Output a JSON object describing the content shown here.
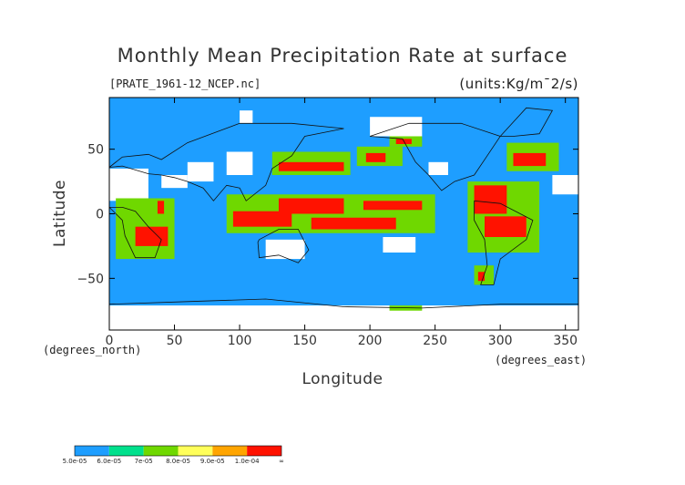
{
  "chart_data": {
    "type": "heatmap",
    "title": "Monthly Mean Precipitation Rate at surface",
    "source_label": "[PRATE_1961-12_NCEP.nc]",
    "units_label": "(units:Kg/m¯2/s)",
    "xlabel": "Longitude",
    "ylabel": "Latitude",
    "x_units_note": "(degrees_east)",
    "y_units_note": "(degrees_north)",
    "xlim": [
      0,
      360
    ],
    "ylim": [
      -90,
      90
    ],
    "x_ticks": [
      {
        "value": 0,
        "label": "0"
      },
      {
        "value": 50,
        "label": "50"
      },
      {
        "value": 100,
        "label": "100"
      },
      {
        "value": 150,
        "label": "150"
      },
      {
        "value": 200,
        "label": "200"
      },
      {
        "value": 250,
        "label": "250"
      },
      {
        "value": 300,
        "label": "300"
      },
      {
        "value": 350,
        "label": "350"
      }
    ],
    "y_ticks": [
      {
        "value": 50,
        "label": "50"
      },
      {
        "value": 0,
        "label": "0"
      },
      {
        "value": -50,
        "label": "−50"
      }
    ],
    "background_level": "5.0e-05 to 6.0e-05",
    "colorbar": {
      "colors": [
        "#1e9eff",
        "#00e08c",
        "#6fd800",
        "#ffff5a",
        "#ffa500",
        "#ff1200"
      ],
      "tick_labels": [
        "5.0e-05",
        "6.0e-05",
        "7e-05",
        "8.0e-05",
        "9.0e-05",
        "1.0e-04",
        "∞"
      ]
    },
    "regions": [
      {
        "level": "white",
        "lon": [
          0,
          360
        ],
        "lat": [
          -90,
          -71
        ]
      },
      {
        "level": "white",
        "lon": [
          0,
          30
        ],
        "lat": [
          10,
          35
        ]
      },
      {
        "level": "white",
        "lon": [
          40,
          60
        ],
        "lat": [
          20,
          30
        ]
      },
      {
        "level": "white",
        "lon": [
          60,
          80
        ],
        "lat": [
          25,
          40
        ]
      },
      {
        "level": "white",
        "lon": [
          90,
          110
        ],
        "lat": [
          30,
          48
        ]
      },
      {
        "level": "white",
        "lon": [
          100,
          110
        ],
        "lat": [
          70,
          80
        ]
      },
      {
        "level": "white",
        "lon": [
          200,
          240
        ],
        "lat": [
          60,
          75
        ]
      },
      {
        "level": "white",
        "lon": [
          245,
          260
        ],
        "lat": [
          30,
          40
        ]
      },
      {
        "level": "white",
        "lon": [
          340,
          360
        ],
        "lat": [
          15,
          30
        ]
      },
      {
        "level": "white",
        "lon": [
          120,
          150
        ],
        "lat": [
          -35,
          -20
        ]
      },
      {
        "level": "white",
        "lon": [
          210,
          235
        ],
        "lat": [
          -30,
          -18
        ]
      },
      {
        "level": "white",
        "lon": [
          280,
          290
        ],
        "lat": [
          -30,
          -15
        ]
      },
      {
        "level": "green",
        "lon": [
          125,
          185
        ],
        "lat": [
          30,
          48
        ]
      },
      {
        "level": "red",
        "lon": [
          130,
          180
        ],
        "lat": [
          33,
          40
        ]
      },
      {
        "level": "green",
        "lon": [
          190,
          225
        ],
        "lat": [
          37,
          52
        ]
      },
      {
        "level": "red",
        "lon": [
          197,
          212
        ],
        "lat": [
          40,
          47
        ]
      },
      {
        "level": "green",
        "lon": [
          305,
          345
        ],
        "lat": [
          33,
          55
        ]
      },
      {
        "level": "red",
        "lon": [
          310,
          335
        ],
        "lat": [
          37,
          47
        ]
      },
      {
        "level": "green",
        "lon": [
          215,
          240
        ],
        "lat": [
          52,
          60
        ]
      },
      {
        "level": "red",
        "lon": [
          220,
          232
        ],
        "lat": [
          54,
          58
        ]
      },
      {
        "level": "green",
        "lon": [
          90,
          250
        ],
        "lat": [
          -15,
          15
        ]
      },
      {
        "level": "red",
        "lon": [
          130,
          180
        ],
        "lat": [
          0,
          12
        ]
      },
      {
        "level": "red",
        "lon": [
          195,
          240
        ],
        "lat": [
          3,
          10
        ]
      },
      {
        "level": "red",
        "lon": [
          95,
          140
        ],
        "lat": [
          -10,
          2
        ]
      },
      {
        "level": "red",
        "lon": [
          155,
          220
        ],
        "lat": [
          -12,
          -3
        ]
      },
      {
        "level": "green",
        "lon": [
          5,
          50
        ],
        "lat": [
          -35,
          12
        ]
      },
      {
        "level": "red",
        "lon": [
          20,
          45
        ],
        "lat": [
          -25,
          -10
        ]
      },
      {
        "level": "red",
        "lon": [
          37,
          42
        ],
        "lat": [
          0,
          10
        ]
      },
      {
        "level": "green",
        "lon": [
          275,
          330
        ],
        "lat": [
          -30,
          25
        ]
      },
      {
        "level": "red",
        "lon": [
          280,
          305
        ],
        "lat": [
          0,
          22
        ]
      },
      {
        "level": "red",
        "lon": [
          288,
          320
        ],
        "lat": [
          -18,
          -2
        ]
      },
      {
        "level": "green",
        "lon": [
          280,
          295
        ],
        "lat": [
          -55,
          -40
        ]
      },
      {
        "level": "red",
        "lon": [
          283,
          288
        ],
        "lat": [
          -52,
          -45
        ]
      },
      {
        "level": "green",
        "lon": [
          215,
          240
        ],
        "lat": [
          -75,
          -71
        ]
      }
    ]
  }
}
